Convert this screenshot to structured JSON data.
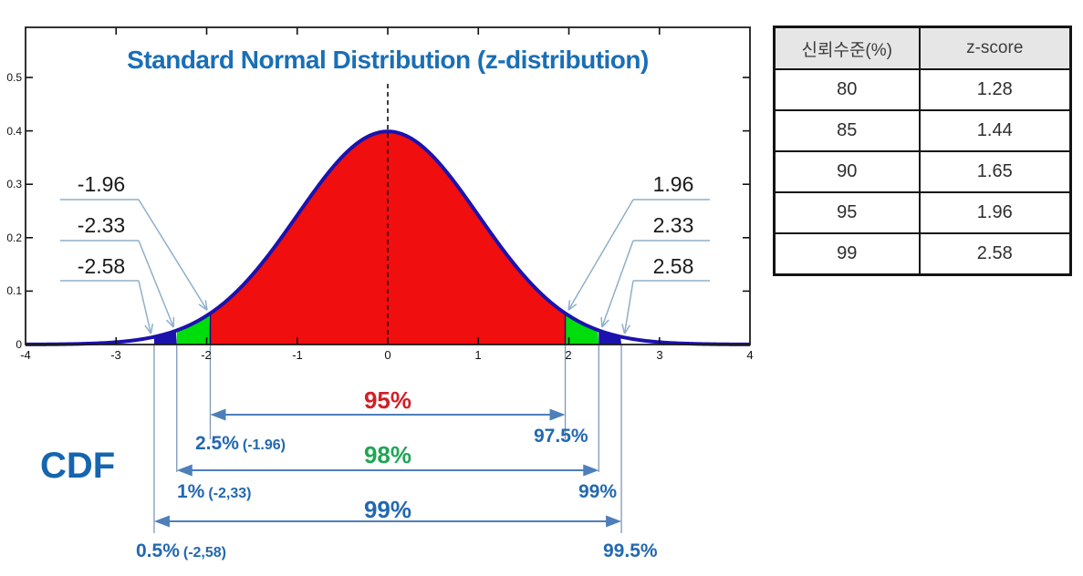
{
  "title": "Standard Normal Distribution (z-distribution)",
  "colors": {
    "title_blue": "#1a6fb5",
    "cdf_text_blue": "#2368b0",
    "curve_navy": "#1b12ae",
    "fill_red": "#f10e0e",
    "fill_green": "#00dd0c",
    "leader_line": "#8fafc9",
    "arrow_blue": "#4d7fba",
    "table_header_bg": "#e6e6e6"
  },
  "chart_data": {
    "type": "area",
    "title": "Standard Normal Distribution (z-distribution)",
    "distribution": "standard normal pdf N(0,1), peak 0.3989 at z=0",
    "xlim": [
      -4,
      4
    ],
    "ylim": [
      0,
      0.59
    ],
    "x_ticks": [
      "-4",
      "-3",
      "-2",
      "-1",
      "0",
      "1",
      "2",
      "3",
      "4"
    ],
    "y_ticks": [
      "0.5",
      "0.4",
      "0.3",
      "0.2",
      "0.1",
      "0"
    ],
    "y_tick_values": [
      0.5,
      0.4,
      0.3,
      0.2,
      0.1,
      0
    ],
    "center_dashed_line_x": 0,
    "curve_color": "#1b12ae",
    "regions": [
      {
        "name": "central-95pct",
        "from": -1.96,
        "to": 1.96,
        "fill": "#f10e0e"
      },
      {
        "name": "green-left-2.5-to-1pct",
        "from": -2.33,
        "to": -1.96,
        "fill": "#00dd0c"
      },
      {
        "name": "green-right-2.5-to-1pct",
        "from": 1.96,
        "to": 2.33,
        "fill": "#00dd0c"
      },
      {
        "name": "blue-left-1-to-0.5pct",
        "from": -2.58,
        "to": -2.33,
        "fill": "#1b12ae"
      },
      {
        "name": "blue-right-1-to-0.5pct",
        "from": 2.33,
        "to": 2.58,
        "fill": "#1b12ae"
      }
    ],
    "callouts": [
      {
        "label": "-1.96",
        "z": -1.96
      },
      {
        "label": "-2.33",
        "z": -2.33
      },
      {
        "label": "-2.58",
        "z": -2.58
      },
      {
        "label": "1.96",
        "z": 1.96
      },
      {
        "label": "2.33",
        "z": 2.33
      },
      {
        "label": "2.58",
        "z": 2.58
      }
    ]
  },
  "cdf": {
    "label": "CDF",
    "rows": [
      {
        "span_label": "95%",
        "span_color": "#d11f27",
        "z": 1.96,
        "left_label": "2.5%",
        "left_note": "(-1.96)",
        "right_label": "97.5%"
      },
      {
        "span_label": "98%",
        "span_color": "#1fa654",
        "z": 2.33,
        "left_label": "1%",
        "left_note": "(-2,33)",
        "right_label": "99%"
      },
      {
        "span_label": "99%",
        "span_color": "#2368b0",
        "z": 2.58,
        "left_label": "0.5%",
        "left_note": "(-2,58)",
        "right_label": "99.5%"
      }
    ]
  },
  "table": {
    "headers": [
      "신뢰수준(%)",
      "z-score"
    ],
    "rows": [
      {
        "confidence": "80",
        "zscore": "1.28"
      },
      {
        "confidence": "85",
        "zscore": "1.44"
      },
      {
        "confidence": "90",
        "zscore": "1.65"
      },
      {
        "confidence": "95",
        "zscore": "1.96"
      },
      {
        "confidence": "99",
        "zscore": "2.58"
      }
    ]
  }
}
